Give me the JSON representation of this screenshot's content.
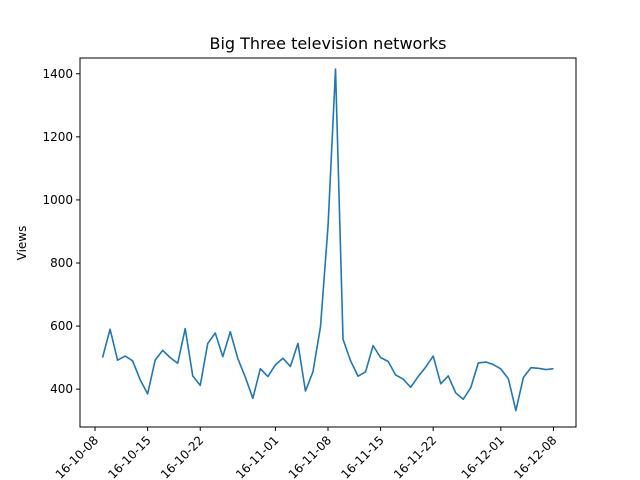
{
  "chart_data": {
    "type": "line",
    "title": "Big Three television networks",
    "xlabel": "",
    "ylabel": "Views",
    "x_start": "2016-10-09",
    "ylim": [
      280,
      1450
    ],
    "yticks": [
      400,
      600,
      800,
      1000,
      1200,
      1400
    ],
    "xticks": [
      "2016-10-08",
      "2016-10-15",
      "2016-10-22",
      "2016-11-01",
      "2016-11-08",
      "2016-11-15",
      "2016-11-22",
      "2016-12-01",
      "2016-12-08"
    ],
    "xtick_labels": [
      "16-10-08",
      "16-10-15",
      "16-10-22",
      "16-11-01",
      "16-11-08",
      "16-11-15",
      "16-11-22",
      "16-12-01",
      "16-12-08"
    ],
    "grid": false,
    "series": [
      {
        "name": "",
        "color": "#1f77b4",
        "values": [
          500,
          590,
          492,
          505,
          490,
          430,
          385,
          492,
          523,
          500,
          482,
          592,
          442,
          412,
          545,
          578,
          503,
          582,
          497,
          438,
          371,
          465,
          440,
          477,
          498,
          472,
          545,
          394,
          455,
          598,
          915,
          1415,
          558,
          490,
          441,
          455,
          538,
          500,
          488,
          445,
          432,
          406,
          440,
          470,
          505,
          417,
          442,
          388,
          368,
          405,
          483,
          486,
          478,
          464,
          433,
          332,
          437,
          468,
          466,
          462,
          465
        ]
      }
    ]
  }
}
